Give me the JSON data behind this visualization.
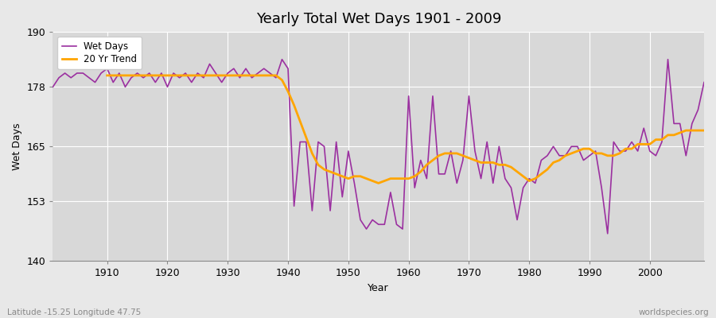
{
  "title": "Yearly Total Wet Days 1901 - 2009",
  "xlabel": "Year",
  "ylabel": "Wet Days",
  "lat_lon_label": "Latitude -15.25 Longitude 47.75",
  "source_label": "worldspecies.org",
  "ylim": [
    140,
    190
  ],
  "yticks": [
    140,
    153,
    165,
    178,
    190
  ],
  "xlim": [
    1901,
    2009
  ],
  "xticks": [
    1910,
    1920,
    1930,
    1940,
    1950,
    1960,
    1970,
    1980,
    1990,
    2000
  ],
  "wet_days_color": "#9B30A0",
  "trend_color": "#FFA500",
  "background_color": "#E8E8E8",
  "plot_bg_color": "#D8D8D8",
  "grid_color": "#FFFFFF",
  "wet_days_label": "Wet Days",
  "trend_label": "20 Yr Trend",
  "years": [
    1901,
    1902,
    1903,
    1904,
    1905,
    1906,
    1907,
    1908,
    1909,
    1910,
    1911,
    1912,
    1913,
    1914,
    1915,
    1916,
    1917,
    1918,
    1919,
    1920,
    1921,
    1922,
    1923,
    1924,
    1925,
    1926,
    1927,
    1928,
    1929,
    1930,
    1931,
    1932,
    1933,
    1934,
    1935,
    1936,
    1937,
    1938,
    1939,
    1940,
    1941,
    1942,
    1943,
    1944,
    1945,
    1946,
    1947,
    1948,
    1949,
    1950,
    1951,
    1952,
    1953,
    1954,
    1955,
    1956,
    1957,
    1958,
    1959,
    1960,
    1961,
    1962,
    1963,
    1964,
    1965,
    1966,
    1967,
    1968,
    1969,
    1970,
    1971,
    1972,
    1973,
    1974,
    1975,
    1976,
    1977,
    1978,
    1979,
    1980,
    1981,
    1982,
    1983,
    1984,
    1985,
    1986,
    1987,
    1988,
    1989,
    1990,
    1991,
    1992,
    1993,
    1994,
    1995,
    1996,
    1997,
    1998,
    1999,
    2000,
    2001,
    2002,
    2003,
    2004,
    2005,
    2006,
    2007,
    2008,
    2009
  ],
  "wet_days": [
    178,
    180,
    181,
    180,
    181,
    181,
    180,
    179,
    181,
    182,
    179,
    181,
    178,
    180,
    181,
    180,
    181,
    179,
    181,
    178,
    181,
    180,
    181,
    179,
    181,
    180,
    183,
    181,
    179,
    181,
    182,
    180,
    182,
    180,
    181,
    182,
    181,
    180,
    184,
    182,
    152,
    166,
    166,
    151,
    166,
    165,
    151,
    166,
    154,
    164,
    157,
    149,
    147,
    149,
    148,
    148,
    155,
    148,
    147,
    176,
    156,
    162,
    158,
    176,
    159,
    159,
    164,
    157,
    162,
    176,
    164,
    158,
    166,
    157,
    165,
    158,
    156,
    149,
    156,
    158,
    157,
    162,
    163,
    165,
    163,
    163,
    165,
    165,
    162,
    163,
    164,
    156,
    146,
    166,
    164,
    164,
    166,
    164,
    169,
    164,
    163,
    166,
    184,
    170,
    170,
    163,
    170,
    173,
    179
  ],
  "trend_years": [
    1910,
    1911,
    1912,
    1913,
    1914,
    1915,
    1916,
    1917,
    1918,
    1919,
    1920,
    1921,
    1922,
    1923,
    1924,
    1925,
    1926,
    1927,
    1928,
    1929,
    1930,
    1931,
    1932,
    1933,
    1934,
    1935,
    1936,
    1937,
    1938,
    1939,
    1940,
    1941,
    1942,
    1943,
    1944,
    1945,
    1946,
    1947,
    1948,
    1949,
    1950,
    1951,
    1952,
    1953,
    1954,
    1955,
    1956,
    1957,
    1958,
    1959,
    1960,
    1961,
    1962,
    1963,
    1964,
    1965,
    1966,
    1967,
    1968,
    1969,
    1970,
    1971,
    1972,
    1973,
    1974,
    1975,
    1976,
    1977,
    1978,
    1979,
    1980,
    1981,
    1982,
    1983,
    1984,
    1985,
    1986,
    1987,
    1988,
    1989,
    1990,
    1991,
    1992,
    1993,
    1994,
    1995,
    1996,
    1997,
    1998,
    1999,
    2000,
    2001,
    2002,
    2003,
    2004,
    2005,
    2006,
    2007,
    2008,
    2009
  ],
  "trend": [
    180.5,
    180.5,
    180.5,
    180.5,
    180.5,
    180.5,
    180.5,
    180.5,
    180.5,
    180.5,
    180.5,
    180.5,
    180.5,
    180.5,
    180.5,
    180.5,
    180.5,
    180.5,
    180.5,
    180.5,
    180.5,
    180.5,
    180.5,
    180.5,
    180.5,
    180.5,
    180.5,
    180.5,
    180.5,
    179.5,
    177.0,
    174.0,
    170.5,
    167.0,
    163.5,
    161.0,
    160.0,
    159.5,
    159.0,
    158.5,
    158.0,
    158.5,
    158.5,
    158.0,
    157.5,
    157.0,
    157.5,
    158.0,
    158.0,
    158.0,
    158.0,
    158.5,
    159.5,
    161.0,
    162.0,
    163.0,
    163.5,
    163.5,
    163.5,
    163.0,
    162.5,
    162.0,
    161.5,
    161.5,
    161.5,
    161.0,
    161.0,
    160.5,
    159.5,
    158.5,
    157.5,
    158.0,
    159.0,
    160.0,
    161.5,
    162.0,
    163.0,
    163.5,
    164.0,
    164.5,
    164.5,
    163.5,
    163.5,
    163.0,
    163.0,
    163.5,
    164.5,
    164.5,
    165.5,
    165.5,
    165.5,
    166.5,
    166.5,
    167.5,
    167.5,
    168.0,
    168.5,
    168.5,
    168.5,
    168.5
  ]
}
